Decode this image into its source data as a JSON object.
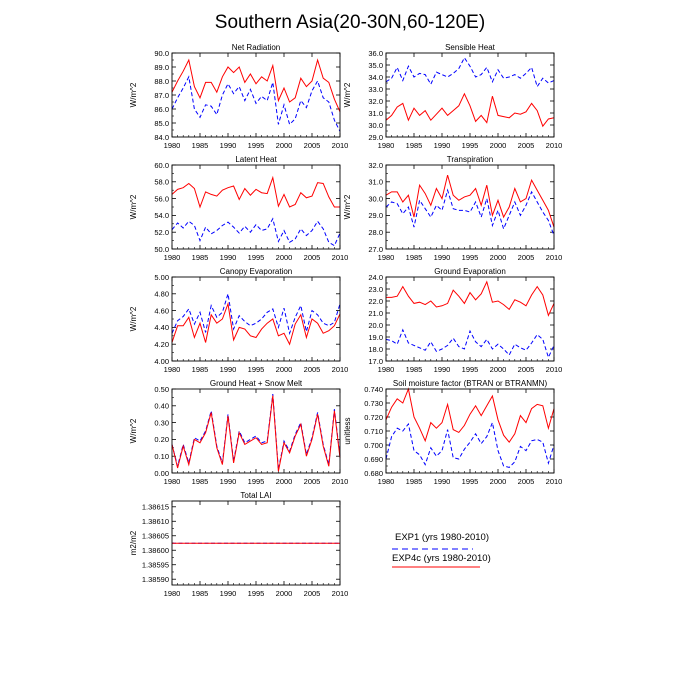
{
  "figure": {
    "title": "Southern Asia(20-30N,60-120E)",
    "legend": {
      "entries": [
        {
          "label": "EXP1 (yrs 1980-2010)",
          "color": "#0000ff",
          "dash": "dashed"
        },
        {
          "label": "EXP4c (yrs 1980-2010)",
          "color": "#ff0000",
          "dash": "solid"
        }
      ]
    },
    "series_colors": {
      "EXP1": "#0000ff",
      "EXP4c": "#ff0000"
    }
  },
  "chart_data": [
    {
      "type": "line",
      "title": "Net Radiation",
      "ylabel": "W/m^2",
      "xlim": [
        1980,
        2010
      ],
      "ylim": [
        84.0,
        90.0
      ],
      "xticks": [
        1980,
        1985,
        1990,
        1995,
        2000,
        2005,
        2010
      ],
      "yticks": [
        84.0,
        85.0,
        86.0,
        87.0,
        88.0,
        89.0,
        90.0
      ],
      "ytick_decimals": 1,
      "x": [
        1980,
        1981,
        1982,
        1983,
        1984,
        1985,
        1986,
        1987,
        1988,
        1989,
        1990,
        1991,
        1992,
        1993,
        1994,
        1995,
        1996,
        1997,
        1998,
        1999,
        2000,
        2001,
        2002,
        2003,
        2004,
        2005,
        2006,
        2007,
        2008,
        2009,
        2010
      ],
      "series": [
        {
          "name": "EXP1",
          "values": [
            86.0,
            86.8,
            87.5,
            88.3,
            86.0,
            85.4,
            86.3,
            86.2,
            85.6,
            87.0,
            87.8,
            87.1,
            87.6,
            86.6,
            87.4,
            86.4,
            86.9,
            86.6,
            87.9,
            84.9,
            86.3,
            84.9,
            85.3,
            86.6,
            86.1,
            87.3,
            88.0,
            86.8,
            86.5,
            85.2,
            84.4
          ]
        },
        {
          "name": "EXP4c",
          "values": [
            87.2,
            88.0,
            88.7,
            89.5,
            87.6,
            86.8,
            87.9,
            87.9,
            87.2,
            88.3,
            89.0,
            88.6,
            89.0,
            87.9,
            88.5,
            87.8,
            88.3,
            88.0,
            89.1,
            86.6,
            87.5,
            86.5,
            86.8,
            88.2,
            87.6,
            88.0,
            89.5,
            88.2,
            87.9,
            86.7,
            85.8
          ]
        }
      ]
    },
    {
      "type": "line",
      "title": "Sensible Heat",
      "ylabel": "W/m^2",
      "xlim": [
        1980,
        2010
      ],
      "ylim": [
        29.0,
        36.0
      ],
      "xticks": [
        1980,
        1985,
        1990,
        1995,
        2000,
        2005,
        2010
      ],
      "yticks": [
        29.0,
        30.0,
        31.0,
        32.0,
        33.0,
        34.0,
        35.0,
        36.0
      ],
      "ytick_decimals": 1,
      "x": [
        1980,
        1981,
        1982,
        1983,
        1984,
        1985,
        1986,
        1987,
        1988,
        1989,
        1990,
        1991,
        1992,
        1993,
        1994,
        1995,
        1996,
        1997,
        1998,
        1999,
        2000,
        2001,
        2002,
        2003,
        2004,
        2005,
        2006,
        2007,
        2008,
        2009,
        2010
      ],
      "series": [
        {
          "name": "EXP1",
          "values": [
            33.6,
            33.9,
            34.8,
            33.7,
            34.9,
            34.0,
            34.3,
            34.2,
            33.4,
            34.4,
            34.2,
            34.0,
            34.3,
            34.7,
            35.6,
            34.9,
            34.0,
            34.2,
            34.8,
            33.6,
            34.6,
            33.9,
            34.0,
            34.2,
            33.9,
            34.3,
            34.8,
            33.2,
            33.9,
            33.5,
            33.7
          ]
        },
        {
          "name": "EXP4c",
          "values": [
            30.4,
            30.8,
            31.5,
            31.8,
            30.4,
            31.4,
            30.8,
            31.2,
            30.4,
            30.9,
            31.4,
            30.8,
            31.2,
            31.6,
            32.6,
            31.6,
            30.3,
            30.8,
            30.2,
            32.4,
            30.8,
            30.7,
            30.6,
            31.0,
            30.9,
            31.1,
            31.8,
            31.2,
            29.9,
            30.5,
            30.6
          ]
        }
      ]
    },
    {
      "type": "line",
      "title": "Latent Heat",
      "ylabel": "W/m^2",
      "xlim": [
        1980,
        2010
      ],
      "ylim": [
        50.0,
        60.0
      ],
      "xticks": [
        1980,
        1985,
        1990,
        1995,
        2000,
        2005,
        2010
      ],
      "yticks": [
        50.0,
        52.0,
        54.0,
        56.0,
        58.0,
        60.0
      ],
      "ytick_decimals": 1,
      "x": [
        1980,
        1981,
        1982,
        1983,
        1984,
        1985,
        1986,
        1987,
        1988,
        1989,
        1990,
        1991,
        1992,
        1993,
        1994,
        1995,
        1996,
        1997,
        1998,
        1999,
        2000,
        2001,
        2002,
        2003,
        2004,
        2005,
        2006,
        2007,
        2008,
        2009,
        2010
      ],
      "series": [
        {
          "name": "EXP1",
          "values": [
            52.3,
            53.1,
            52.5,
            53.3,
            52.8,
            51.0,
            52.6,
            51.8,
            52.2,
            52.8,
            53.2,
            52.6,
            51.9,
            52.7,
            52.0,
            52.9,
            52.2,
            52.4,
            53.6,
            50.9,
            52.2,
            50.8,
            51.2,
            52.4,
            51.6,
            52.2,
            53.3,
            52.4,
            50.8,
            50.4,
            51.9
          ]
        },
        {
          "name": "EXP4c",
          "values": [
            56.5,
            57.1,
            57.3,
            57.8,
            57.2,
            55.0,
            56.8,
            56.5,
            56.3,
            57.0,
            57.3,
            57.5,
            55.9,
            57.2,
            56.4,
            57.1,
            56.7,
            56.6,
            58.5,
            55.1,
            56.5,
            55.0,
            55.3,
            56.7,
            56.1,
            56.3,
            57.9,
            57.8,
            56.2,
            55.0,
            55.0
          ]
        }
      ]
    },
    {
      "type": "line",
      "title": "Transpiration",
      "ylabel": "W/m^2",
      "xlim": [
        1980,
        2010
      ],
      "ylim": [
        27.0,
        32.0
      ],
      "xticks": [
        1980,
        1985,
        1990,
        1995,
        2000,
        2005,
        2010
      ],
      "yticks": [
        27.0,
        28.0,
        29.0,
        30.0,
        31.0,
        32.0
      ],
      "ytick_decimals": 1,
      "x": [
        1980,
        1981,
        1982,
        1983,
        1984,
        1985,
        1986,
        1987,
        1988,
        1989,
        1990,
        1991,
        1992,
        1993,
        1994,
        1995,
        1996,
        1997,
        1998,
        1999,
        2000,
        2001,
        2002,
        2003,
        2004,
        2005,
        2006,
        2007,
        2008,
        2009,
        2010
      ],
      "series": [
        {
          "name": "EXP1",
          "values": [
            29.5,
            29.8,
            29.7,
            29.1,
            29.5,
            28.3,
            29.9,
            29.4,
            28.9,
            29.6,
            29.3,
            30.5,
            29.4,
            29.3,
            29.3,
            29.2,
            29.8,
            28.9,
            30.0,
            28.4,
            29.3,
            28.2,
            29.0,
            29.8,
            29.0,
            29.6,
            30.4,
            29.8,
            29.2,
            28.7,
            27.8
          ]
        },
        {
          "name": "EXP4c",
          "values": [
            30.2,
            30.4,
            30.4,
            29.8,
            30.2,
            28.9,
            30.8,
            30.3,
            29.6,
            30.6,
            30.0,
            31.4,
            30.2,
            29.9,
            30.1,
            30.2,
            30.6,
            29.6,
            30.8,
            29.0,
            29.9,
            28.9,
            29.5,
            30.6,
            29.8,
            30.0,
            31.1,
            30.5,
            29.9,
            29.3,
            28.3
          ]
        }
      ]
    },
    {
      "type": "line",
      "title": "Canopy Evaporation",
      "ylabel": "W/m^2",
      "xlim": [
        1980,
        2010
      ],
      "ylim": [
        4.0,
        5.0
      ],
      "xticks": [
        1980,
        1985,
        1990,
        1995,
        2000,
        2005,
        2010
      ],
      "yticks": [
        4.0,
        4.2,
        4.4,
        4.6,
        4.8,
        5.0
      ],
      "ytick_decimals": 2,
      "x": [
        1980,
        1981,
        1982,
        1983,
        1984,
        1985,
        1986,
        1987,
        1988,
        1989,
        1990,
        1991,
        1992,
        1993,
        1994,
        1995,
        1996,
        1997,
        1998,
        1999,
        2000,
        2001,
        2002,
        2003,
        2004,
        2005,
        2006,
        2007,
        2008,
        2009,
        2010
      ],
      "series": [
        {
          "name": "EXP1",
          "values": [
            4.33,
            4.48,
            4.53,
            4.62,
            4.44,
            4.58,
            4.34,
            4.66,
            4.52,
            4.58,
            4.8,
            4.38,
            4.54,
            4.47,
            4.42,
            4.45,
            4.5,
            4.58,
            4.62,
            4.4,
            4.63,
            4.33,
            4.52,
            4.66,
            4.35,
            4.6,
            4.55,
            4.45,
            4.42,
            4.46,
            4.68
          ]
        },
        {
          "name": "EXP4c",
          "values": [
            4.22,
            4.42,
            4.42,
            4.52,
            4.28,
            4.45,
            4.22,
            4.55,
            4.45,
            4.5,
            4.68,
            4.25,
            4.4,
            4.38,
            4.3,
            4.28,
            4.38,
            4.45,
            4.5,
            4.3,
            4.33,
            4.2,
            4.44,
            4.55,
            4.28,
            4.5,
            4.45,
            4.33,
            4.36,
            4.42,
            4.56
          ]
        }
      ]
    },
    {
      "type": "line",
      "title": "Ground Evaporation",
      "ylabel": "",
      "xlim": [
        1980,
        2010
      ],
      "ylim": [
        17.0,
        24.0
      ],
      "xticks": [
        1980,
        1985,
        1990,
        1995,
        2000,
        2005,
        2010
      ],
      "yticks": [
        17.0,
        18.0,
        19.0,
        20.0,
        21.0,
        22.0,
        23.0,
        24.0
      ],
      "ytick_decimals": 1,
      "x": [
        1980,
        1981,
        1982,
        1983,
        1984,
        1985,
        1986,
        1987,
        1988,
        1989,
        1990,
        1991,
        1992,
        1993,
        1994,
        1995,
        1996,
        1997,
        1998,
        1999,
        2000,
        2001,
        2002,
        2003,
        2004,
        2005,
        2006,
        2007,
        2008,
        2009,
        2010
      ],
      "series": [
        {
          "name": "EXP1",
          "values": [
            18.8,
            18.7,
            18.4,
            19.6,
            18.5,
            18.3,
            18.1,
            17.9,
            18.6,
            17.8,
            18.0,
            18.3,
            18.9,
            18.2,
            18.0,
            19.5,
            18.6,
            18.2,
            18.8,
            18.0,
            18.4,
            18.0,
            17.5,
            18.4,
            18.1,
            17.9,
            18.5,
            19.2,
            18.8,
            17.3,
            18.3
          ]
        },
        {
          "name": "EXP4c",
          "values": [
            22.3,
            22.3,
            22.4,
            23.2,
            22.4,
            21.8,
            21.9,
            21.7,
            22.0,
            21.5,
            21.6,
            21.8,
            22.9,
            22.4,
            21.8,
            22.7,
            22.1,
            22.6,
            23.6,
            21.9,
            22.0,
            21.7,
            21.3,
            22.1,
            21.9,
            21.6,
            22.5,
            23.2,
            22.5,
            20.8,
            21.8
          ]
        }
      ]
    },
    {
      "type": "line",
      "title": "Ground Heat + Snow Melt",
      "ylabel": "W/m^2",
      "xlim": [
        1980,
        2010
      ],
      "ylim": [
        0.0,
        0.5
      ],
      "xticks": [
        1980,
        1985,
        1990,
        1995,
        2000,
        2005,
        2010
      ],
      "yticks": [
        0.0,
        0.1,
        0.2,
        0.3,
        0.4,
        0.5
      ],
      "ytick_decimals": 2,
      "x": [
        1980,
        1981,
        1982,
        1983,
        1984,
        1985,
        1986,
        1987,
        1988,
        1989,
        1990,
        1991,
        1992,
        1993,
        1994,
        1995,
        1996,
        1997,
        1998,
        1999,
        2000,
        2001,
        2002,
        2003,
        2004,
        2005,
        2006,
        2007,
        2008,
        2009,
        2010
      ],
      "series": [
        {
          "name": "EXP1",
          "values": [
            0.17,
            0.04,
            0.17,
            0.06,
            0.21,
            0.19,
            0.25,
            0.37,
            0.16,
            0.06,
            0.35,
            0.07,
            0.25,
            0.18,
            0.2,
            0.22,
            0.18,
            0.19,
            0.47,
            0.02,
            0.19,
            0.13,
            0.23,
            0.3,
            0.11,
            0.21,
            0.36,
            0.17,
            0.05,
            0.38,
            0.1
          ]
        },
        {
          "name": "EXP4c",
          "values": [
            0.17,
            0.03,
            0.16,
            0.05,
            0.2,
            0.18,
            0.24,
            0.36,
            0.15,
            0.05,
            0.34,
            0.06,
            0.24,
            0.17,
            0.19,
            0.21,
            0.17,
            0.18,
            0.46,
            0.01,
            0.18,
            0.12,
            0.22,
            0.29,
            0.1,
            0.2,
            0.35,
            0.16,
            0.04,
            0.37,
            0.09
          ]
        }
      ]
    },
    {
      "type": "line",
      "title": "Soil moisture factor (BTRAN or BTRANMN)",
      "ylabel": "unitless",
      "xlim": [
        1980,
        2010
      ],
      "ylim": [
        0.68,
        0.74
      ],
      "xticks": [
        1980,
        1985,
        1990,
        1995,
        2000,
        2005,
        2010
      ],
      "yticks": [
        0.68,
        0.69,
        0.7,
        0.71,
        0.72,
        0.73,
        0.74
      ],
      "ytick_decimals": 3,
      "x": [
        1980,
        1981,
        1982,
        1983,
        1984,
        1985,
        1986,
        1987,
        1988,
        1989,
        1990,
        1991,
        1992,
        1993,
        1994,
        1995,
        1996,
        1997,
        1998,
        1999,
        2000,
        2001,
        2002,
        2003,
        2004,
        2005,
        2006,
        2007,
        2008,
        2009,
        2010
      ],
      "series": [
        {
          "name": "EXP1",
          "values": [
            0.69,
            0.706,
            0.712,
            0.71,
            0.715,
            0.696,
            0.693,
            0.686,
            0.698,
            0.692,
            0.696,
            0.711,
            0.691,
            0.69,
            0.697,
            0.702,
            0.708,
            0.701,
            0.706,
            0.716,
            0.696,
            0.685,
            0.684,
            0.688,
            0.699,
            0.696,
            0.703,
            0.704,
            0.702,
            0.687,
            0.7
          ]
        },
        {
          "name": "EXP4c",
          "values": [
            0.718,
            0.727,
            0.733,
            0.73,
            0.74,
            0.72,
            0.712,
            0.703,
            0.716,
            0.712,
            0.716,
            0.729,
            0.711,
            0.709,
            0.714,
            0.722,
            0.728,
            0.721,
            0.728,
            0.735,
            0.718,
            0.707,
            0.702,
            0.708,
            0.721,
            0.716,
            0.726,
            0.729,
            0.728,
            0.712,
            0.726
          ]
        }
      ]
    },
    {
      "type": "line",
      "title": "Total LAI",
      "ylabel": "m2/m2",
      "xlim": [
        1980,
        2010
      ],
      "ylim": [
        1.38588,
        1.38617
      ],
      "xticks": [
        1980,
        1985,
        1990,
        1995,
        2000,
        2005,
        2010
      ],
      "yticks": [
        1.3859,
        1.38595,
        1.386,
        1.38605,
        1.3861,
        1.38615
      ],
      "ytick_decimals": 5,
      "x": [
        1980,
        2010
      ],
      "series": [
        {
          "name": "EXP1",
          "values": [
            1.386024,
            1.386024
          ]
        },
        {
          "name": "EXP4c",
          "values": [
            1.386024,
            1.386024
          ]
        }
      ]
    }
  ]
}
